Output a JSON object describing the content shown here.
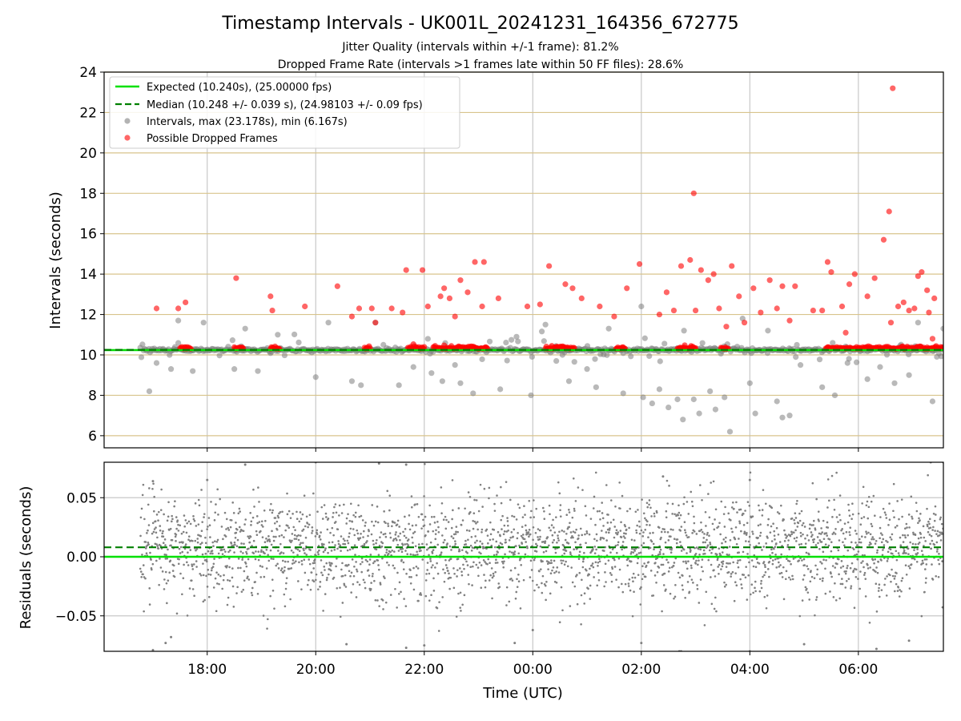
{
  "title": "Timestamp Intervals - UK001L_20241231_164356_672775",
  "subtitle_1": "Jitter Quality (intervals within +/-1 frame): 81.2%",
  "subtitle_2": "Dropped Frame Rate (intervals >1 frames late within 50 FF files): 28.6%",
  "colors": {
    "expected": "#00e000",
    "median": "#008000",
    "intervals": "#808080",
    "dropped": "#ff0000",
    "hgrid": "#d8c48c",
    "vgrid": "#c8c8c8"
  },
  "chart_data": [
    {
      "type": "scatter",
      "ylabel": "Intervals (seconds)",
      "ylim": [
        5.4,
        24
      ],
      "xlim": [
        "16:06",
        "07:34"
      ],
      "yticks": [
        6,
        8,
        10,
        12,
        14,
        16,
        18,
        20,
        22,
        24
      ],
      "grid": true,
      "legend_position": "top-left",
      "legend": [
        "Expected (10.240s), (25.00000 fps)",
        "Median (10.248 +/- 0.039 s), (24.98103 +/- 0.09 fps)",
        "Intervals, max (23.178s), min (6.167s)",
        "Possible Dropped Frames"
      ],
      "expected": 10.24,
      "median": 10.248,
      "series": [
        {
          "name": "Intervals, max (23.178s), min (6.167s)",
          "points": [
            [
              "16:56",
              8.2
            ],
            [
              "17:04",
              9.6
            ],
            [
              "17:20",
              9.3
            ],
            [
              "17:28",
              11.7
            ],
            [
              "17:44",
              9.2
            ],
            [
              "17:56",
              11.6
            ],
            [
              "18:30",
              9.3
            ],
            [
              "18:42",
              11.3
            ],
            [
              "18:56",
              9.2
            ],
            [
              "19:18",
              11.0
            ],
            [
              "20:00",
              8.9
            ],
            [
              "20:14",
              11.6
            ],
            [
              "20:40",
              8.7
            ],
            [
              "20:50",
              8.5
            ],
            [
              "21:06",
              11.6
            ],
            [
              "21:32",
              8.5
            ],
            [
              "21:48",
              9.4
            ],
            [
              "22:08",
              9.1
            ],
            [
              "22:20",
              8.7
            ],
            [
              "22:40",
              8.6
            ],
            [
              "22:54",
              8.1
            ],
            [
              "23:24",
              8.3
            ],
            [
              "23:42",
              10.9
            ],
            [
              "23:58",
              8.0
            ],
            [
              "00:14",
              11.5
            ],
            [
              "00:26",
              9.7
            ],
            [
              "00:40",
              8.7
            ],
            [
              "01:00",
              9.3
            ],
            [
              "01:10",
              8.4
            ],
            [
              "01:24",
              11.3
            ],
            [
              "01:40",
              8.1
            ],
            [
              "02:00",
              12.4
            ],
            [
              "02:02",
              7.9
            ],
            [
              "02:12",
              7.6
            ],
            [
              "02:20",
              8.3
            ],
            [
              "02:30",
              7.4
            ],
            [
              "02:40",
              7.8
            ],
            [
              "02:46",
              6.8
            ],
            [
              "02:58",
              7.8
            ],
            [
              "03:04",
              7.1
            ],
            [
              "03:16",
              8.2
            ],
            [
              "03:22",
              7.3
            ],
            [
              "03:32",
              7.9
            ],
            [
              "03:38",
              6.2
            ],
            [
              "03:52",
              11.8
            ],
            [
              "04:00",
              8.6
            ],
            [
              "04:06",
              7.1
            ],
            [
              "04:20",
              11.2
            ],
            [
              "04:30",
              7.7
            ],
            [
              "04:36",
              6.9
            ],
            [
              "04:44",
              7.0
            ],
            [
              "04:56",
              9.5
            ],
            [
              "05:20",
              8.4
            ],
            [
              "05:34",
              8.0
            ],
            [
              "05:48",
              9.6
            ],
            [
              "06:10",
              8.8
            ],
            [
              "06:24",
              9.4
            ],
            [
              "06:40",
              8.6
            ],
            [
              "06:56",
              9.0
            ],
            [
              "07:06",
              11.6
            ],
            [
              "07:22",
              7.7
            ],
            [
              "07:34",
              11.3
            ]
          ]
        },
        {
          "name": "Possible Dropped Frames",
          "points": [
            [
              "17:04",
              12.3
            ],
            [
              "17:28",
              12.3
            ],
            [
              "17:36",
              12.6
            ],
            [
              "18:32",
              13.8
            ],
            [
              "19:10",
              12.9
            ],
            [
              "19:12",
              12.2
            ],
            [
              "19:48",
              12.4
            ],
            [
              "20:24",
              13.4
            ],
            [
              "20:40",
              11.9
            ],
            [
              "20:48",
              12.3
            ],
            [
              "21:02",
              12.3
            ],
            [
              "21:06",
              11.6
            ],
            [
              "21:24",
              12.3
            ],
            [
              "21:36",
              12.1
            ],
            [
              "21:40",
              14.2
            ],
            [
              "21:58",
              14.2
            ],
            [
              "22:04",
              12.4
            ],
            [
              "22:18",
              12.9
            ],
            [
              "22:22",
              13.3
            ],
            [
              "22:28",
              12.8
            ],
            [
              "22:34",
              11.9
            ],
            [
              "22:40",
              13.7
            ],
            [
              "22:48",
              13.1
            ],
            [
              "22:56",
              14.6
            ],
            [
              "23:06",
              14.6
            ],
            [
              "23:04",
              12.4
            ],
            [
              "23:22",
              12.8
            ],
            [
              "23:54",
              12.4
            ],
            [
              "00:08",
              12.5
            ],
            [
              "00:18",
              14.4
            ],
            [
              "00:36",
              13.5
            ],
            [
              "00:44",
              13.3
            ],
            [
              "00:54",
              12.8
            ],
            [
              "01:14",
              12.4
            ],
            [
              "01:30",
              11.9
            ],
            [
              "01:44",
              13.3
            ],
            [
              "01:58",
              14.5
            ],
            [
              "02:20",
              12.0
            ],
            [
              "02:28",
              13.1
            ],
            [
              "02:36",
              12.2
            ],
            [
              "02:44",
              14.4
            ],
            [
              "02:54",
              14.7
            ],
            [
              "02:58",
              18.0
            ],
            [
              "03:00",
              12.2
            ],
            [
              "03:06",
              14.2
            ],
            [
              "03:14",
              13.7
            ],
            [
              "03:20",
              14.0
            ],
            [
              "03:26",
              12.3
            ],
            [
              "03:34",
              11.4
            ],
            [
              "03:40",
              14.4
            ],
            [
              "03:48",
              12.9
            ],
            [
              "03:54",
              11.6
            ],
            [
              "04:04",
              13.3
            ],
            [
              "04:12",
              12.1
            ],
            [
              "04:22",
              13.7
            ],
            [
              "04:30",
              12.3
            ],
            [
              "04:36",
              13.4
            ],
            [
              "04:44",
              11.7
            ],
            [
              "04:50",
              13.4
            ],
            [
              "05:10",
              12.2
            ],
            [
              "05:20",
              12.2
            ],
            [
              "05:26",
              14.6
            ],
            [
              "05:30",
              14.1
            ],
            [
              "05:42",
              12.4
            ],
            [
              "05:50",
              13.5
            ],
            [
              "05:56",
              14.0
            ],
            [
              "06:10",
              12.9
            ],
            [
              "06:18",
              13.8
            ],
            [
              "06:28",
              15.7
            ],
            [
              "06:34",
              17.1
            ],
            [
              "06:38",
              23.2
            ],
            [
              "06:44",
              12.4
            ],
            [
              "06:50",
              12.6
            ],
            [
              "06:56",
              12.2
            ],
            [
              "07:02",
              12.3
            ],
            [
              "07:06",
              13.9
            ],
            [
              "07:10",
              14.1
            ],
            [
              "07:16",
              13.2
            ],
            [
              "07:18",
              12.1
            ],
            [
              "07:24",
              12.8
            ],
            [
              "05:46",
              11.1
            ],
            [
              "06:36",
              11.6
            ],
            [
              "07:22",
              10.8
            ]
          ]
        }
      ]
    },
    {
      "type": "scatter",
      "xlabel": "Time (UTC)",
      "ylabel": "Residuals (seconds)",
      "ylim": [
        -0.08,
        0.08
      ],
      "xlim": [
        "16:06",
        "07:34"
      ],
      "yticks": [
        0.05,
        0.0,
        -0.05
      ],
      "ytick_labels": [
        "0.05",
        "0.00",
        "−0.05"
      ],
      "xticks": [
        "18:00",
        "20:00",
        "22:00",
        "00:00",
        "02:00",
        "04:00",
        "06:00"
      ],
      "grid": true,
      "expected": 0.0,
      "median": 0.008,
      "series": [
        {
          "name": "Residuals",
          "spread_sd": 0.022,
          "points": [
            [
              "17:00",
              0.064
            ],
            [
              "17:00",
              -0.079
            ],
            [
              "17:14",
              -0.073
            ],
            [
              "17:20",
              -0.068
            ],
            [
              "18:00",
              0.065
            ],
            [
              "18:42",
              0.078
            ],
            [
              "19:16",
              0.081
            ],
            [
              "20:00",
              0.08
            ],
            [
              "20:34",
              -0.074
            ],
            [
              "21:10",
              0.079
            ],
            [
              "21:40",
              0.078
            ],
            [
              "21:40",
              -0.077
            ],
            [
              "22:00",
              -0.075
            ],
            [
              "23:40",
              -0.073
            ],
            [
              "00:00",
              -0.062
            ],
            [
              "02:00",
              -0.073
            ],
            [
              "02:24",
              0.068
            ],
            [
              "02:42",
              -0.08
            ],
            [
              "02:44",
              -0.08
            ],
            [
              "04:00",
              0.065
            ],
            [
              "04:00",
              -0.08
            ],
            [
              "05:00",
              -0.074
            ],
            [
              "06:20",
              -0.078
            ],
            [
              "06:56",
              -0.071
            ],
            [
              "07:20",
              0.08
            ],
            [
              "07:34",
              0.08
            ]
          ]
        }
      ]
    }
  ]
}
